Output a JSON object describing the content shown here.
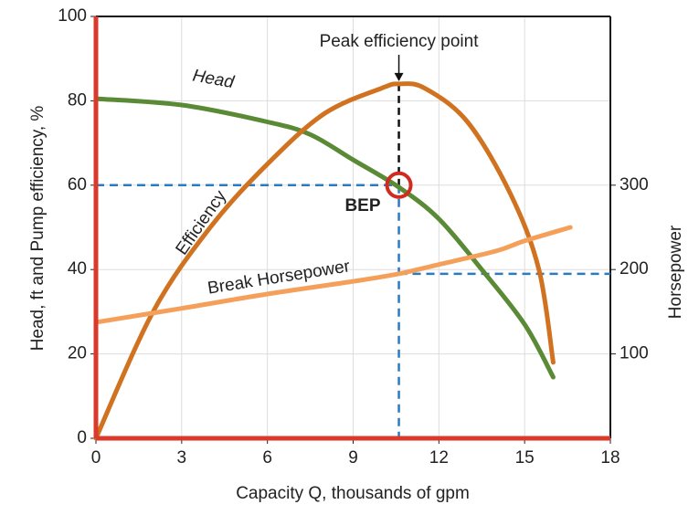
{
  "chart_data": {
    "type": "line",
    "x_label": "Capacity Q, thousands of gpm",
    "y_label": "Head, ft and  Pump efficiency, %",
    "y2_label": "Horsepower",
    "xlim": [
      0,
      18
    ],
    "xticks": [
      0,
      3,
      6,
      9,
      12,
      15,
      18
    ],
    "ylim": [
      0,
      100
    ],
    "yticks": [
      0,
      20,
      40,
      60,
      80,
      100
    ],
    "y2lim": [
      0,
      500
    ],
    "y2ticks": [
      100,
      200,
      300
    ],
    "grid": true,
    "series": [
      {
        "name": "Head",
        "color": "#5a8a35",
        "x": [
          0,
          3,
          6,
          7.5,
          9,
          10.6,
          12,
          13.5,
          15,
          16
        ],
        "values": [
          80.5,
          79,
          75,
          72,
          66,
          59.5,
          52,
          40,
          27,
          14.5
        ]
      },
      {
        "name": "Efficiency",
        "color": "#d0721f",
        "x": [
          0,
          2,
          4,
          6,
          8,
          10,
          10.6,
          11.5,
          13,
          14.5,
          15.5,
          16
        ],
        "values": [
          0,
          30,
          50,
          65,
          77,
          83,
          84,
          83,
          75,
          58,
          40,
          18
        ]
      },
      {
        "name": "Break Horsepower",
        "color": "#f5a05a",
        "axis": "y2",
        "x": [
          0,
          3,
          6,
          9,
          10.6,
          12,
          14,
          15,
          16.6
        ],
        "values": [
          137.5,
          154,
          171,
          186,
          195,
          206,
          222,
          234,
          250
        ]
      }
    ],
    "bep": {
      "x": 10.6,
      "y": 60,
      "label": "BEP"
    },
    "peak": {
      "x": 10.6,
      "y": 84,
      "label": "Peak efficiency point"
    },
    "bep_horsepower": 195
  }
}
